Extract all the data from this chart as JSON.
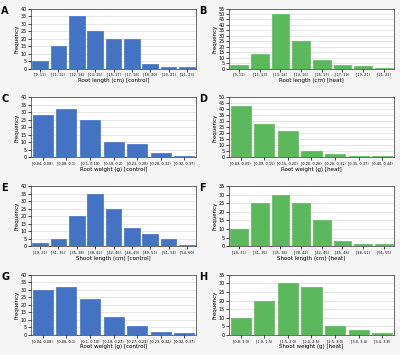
{
  "panels": [
    {
      "label": "A",
      "color": "#4472C4",
      "xlabel": "Root length (cm) [control]",
      "ylabel": "Frequency",
      "bins": [
        "[9, 11)",
        "[11, 12)",
        "[12, 14)",
        "[14, 15)",
        "[15, 17)",
        "[17, 18)",
        "[18, 20)",
        "[20, 21)",
        "[21, 23)"
      ],
      "values": [
        5,
        15,
        35,
        25,
        20,
        20,
        3,
        1,
        1
      ]
    },
    {
      "label": "B",
      "color": "#4CAF50",
      "xlabel": "Root length (cm) [heat]",
      "ylabel": "Frequency",
      "bins": [
        "[9, 11)",
        "[11, 13)",
        "[13, 14)",
        "[14, 16)",
        "[16, 17)",
        "[17, 19)",
        "[19, 21)",
        "[21, 22)"
      ],
      "values": [
        3,
        13,
        50,
        25,
        8,
        3,
        2,
        1
      ]
    },
    {
      "label": "C",
      "color": "#4472C4",
      "xlabel": "Root weight (g) [control]",
      "ylabel": "Frequency",
      "bins": [
        "[0.04, 0.08)",
        "[0.08, 0.1)",
        "[0.1, 0.18)",
        "[0.18, 0.2)",
        "[0.23, 0.28)",
        "[0.28, 0.32)",
        "[0.32, 0.37)"
      ],
      "values": [
        28,
        32,
        25,
        10,
        9,
        3,
        1
      ]
    },
    {
      "label": "D",
      "color": "#4CAF50",
      "xlabel": "Root weight (g) [heat]",
      "ylabel": "Frequency",
      "bins": [
        "[0.03, 0.09)",
        "[0.09, 0.15)",
        "[0.15, 0.20)",
        "[0.20, 0.26)",
        "[0.26, 0.31)",
        "[0.35, 0.37)",
        "[0.40, 0.44)"
      ],
      "values": [
        43,
        28,
        22,
        5,
        3,
        1,
        1
      ]
    },
    {
      "label": "E",
      "color": "#4472C4",
      "xlabel": "Shoot length (cm) [control]",
      "ylabel": "Frequency",
      "bins": [
        "[29, 31)",
        "[31, 35)",
        "[35, 38)",
        "[38, 42)",
        "[42, 46)",
        "[46, 49)",
        "[49, 51)",
        "[51, 54)",
        "[54, 60)"
      ],
      "values": [
        2,
        5,
        20,
        35,
        25,
        12,
        8,
        5,
        1
      ]
    },
    {
      "label": "F",
      "color": "#4CAF50",
      "xlabel": "Shoot length (cm) [heat]",
      "ylabel": "Frequency",
      "bins": [
        "[28, 31)",
        "[31, 35)",
        "[35, 38)",
        "[38, 42)",
        "[42, 45)",
        "[45, 48)",
        "[48, 51)",
        "[51, 55)"
      ],
      "values": [
        10,
        25,
        30,
        25,
        15,
        3,
        1,
        1
      ]
    },
    {
      "label": "G",
      "color": "#4472C4",
      "xlabel": "Root weight (g) [control]",
      "ylabel": "Frequency",
      "bins": [
        "[0.04, 0.08)",
        "[0.08, 0.1)",
        "[0.1, 0.18)",
        "[0.18, 0.27)",
        "[0.27, 0.29)",
        "[0.29, 0.32)",
        "[0.32, 0.37)"
      ],
      "values": [
        30,
        32,
        24,
        12,
        6,
        2,
        1
      ]
    },
    {
      "label": "H",
      "color": "#4CAF50",
      "xlabel": "Shoot weight (g) [heat]",
      "ylabel": "Frequency",
      "bins": [
        "[0.8, 1.0)",
        "[1.0, 1.5)",
        "[1.5, 2.0)",
        "[2.0, 2.5)",
        "[2.5, 3.0)",
        "[3.0, 3.4)",
        "[3.4, 3.8)"
      ],
      "values": [
        10,
        20,
        30,
        28,
        5,
        3,
        1
      ]
    }
  ],
  "blue": "#4472C4",
  "green": "#5CB85C",
  "bg_color": "#f0f0f0",
  "panel_bg": "#ffffff"
}
